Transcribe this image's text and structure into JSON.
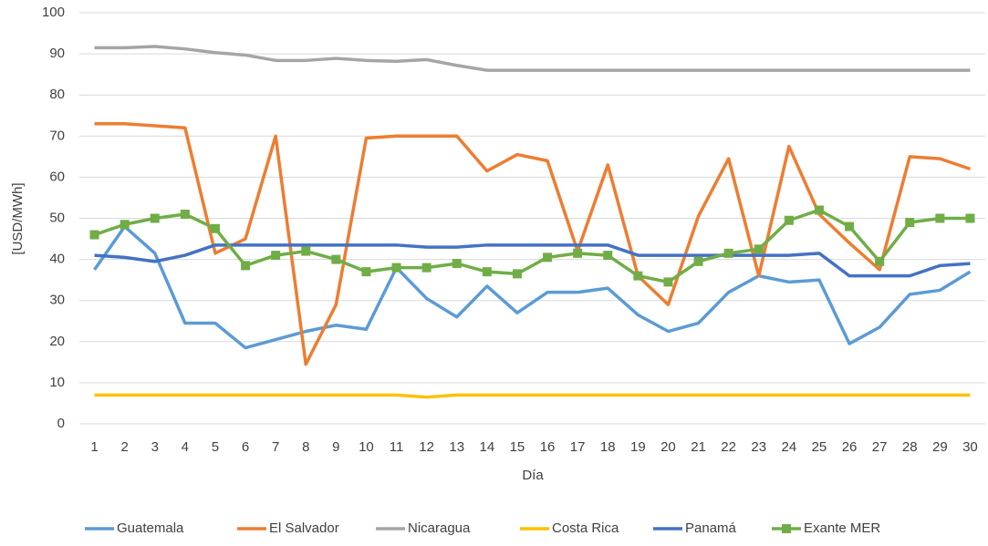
{
  "chart_data": {
    "type": "line",
    "y_label": "[USD/MWh]",
    "x_label": "Día",
    "categories": [
      1,
      2,
      3,
      4,
      5,
      6,
      7,
      8,
      9,
      10,
      11,
      12,
      13,
      14,
      15,
      16,
      17,
      18,
      19,
      20,
      21,
      22,
      23,
      24,
      25,
      26,
      27,
      28,
      29,
      30
    ],
    "ylim": [
      0,
      100
    ],
    "yticks": [
      0,
      10,
      20,
      30,
      40,
      50,
      60,
      70,
      80,
      90,
      100
    ],
    "grid": true,
    "legend": "bottom",
    "series": [
      {
        "name": "Guatemala",
        "color": "#5b9bd5",
        "values": [
          37.5,
          48,
          41.5,
          24.5,
          24.5,
          18.5,
          20.5,
          22.5,
          24,
          23,
          38,
          30.5,
          26,
          33.5,
          27,
          32,
          32,
          33,
          26.5,
          22.5,
          24.5,
          32,
          36,
          34.5,
          35,
          19.5,
          23.5,
          31.5,
          32.5,
          37
        ]
      },
      {
        "name": "El Salvador",
        "color": "#ed7d31",
        "values": [
          73,
          73,
          72.5,
          72,
          41.5,
          45,
          70,
          14.5,
          29,
          69.5,
          70,
          70,
          70,
          61.5,
          65.5,
          64,
          42,
          63,
          36,
          29,
          50.5,
          64.5,
          36,
          67.5,
          51,
          44,
          37.5,
          65,
          64.5,
          62
        ]
      },
      {
        "name": "Nicaragua",
        "color": "#a5a5a5",
        "values": [
          91.5,
          91.5,
          91.8,
          91.2,
          90.3,
          89.7,
          88.4,
          88.4,
          88.9,
          88.4,
          88.2,
          88.6,
          87.2,
          86,
          86,
          86,
          86,
          86,
          86,
          86,
          86,
          86,
          86,
          86,
          86,
          86,
          86,
          86,
          86,
          86
        ]
      },
      {
        "name": "Costa Rica",
        "color": "#ffc000",
        "values": [
          7,
          7,
          7,
          7,
          7,
          7,
          7,
          7,
          7,
          7,
          7,
          6.5,
          7,
          7,
          7,
          7,
          7,
          7,
          7,
          7,
          7,
          7,
          7,
          7,
          7,
          7,
          7,
          7,
          7,
          7
        ]
      },
      {
        "name": "Panamá",
        "color": "#4472c4",
        "values": [
          41,
          40.5,
          39.5,
          41,
          43.5,
          43.5,
          43.5,
          43.5,
          43.5,
          43.5,
          43.5,
          43,
          43,
          43.5,
          43.5,
          43.5,
          43.5,
          43.5,
          41,
          41,
          41,
          41,
          41,
          41,
          41.5,
          36,
          36,
          36,
          38.5,
          39
        ]
      },
      {
        "name": "Exante MER",
        "color": "#70ad47",
        "marker": "square",
        "values": [
          46,
          48.5,
          50,
          51,
          47.5,
          38.5,
          41,
          42,
          40,
          37,
          38,
          38,
          39,
          37,
          36.5,
          40.5,
          41.5,
          41,
          36,
          34.5,
          39.5,
          41.5,
          42.5,
          49.5,
          52,
          48,
          39.5,
          49,
          50,
          50
        ]
      }
    ]
  }
}
